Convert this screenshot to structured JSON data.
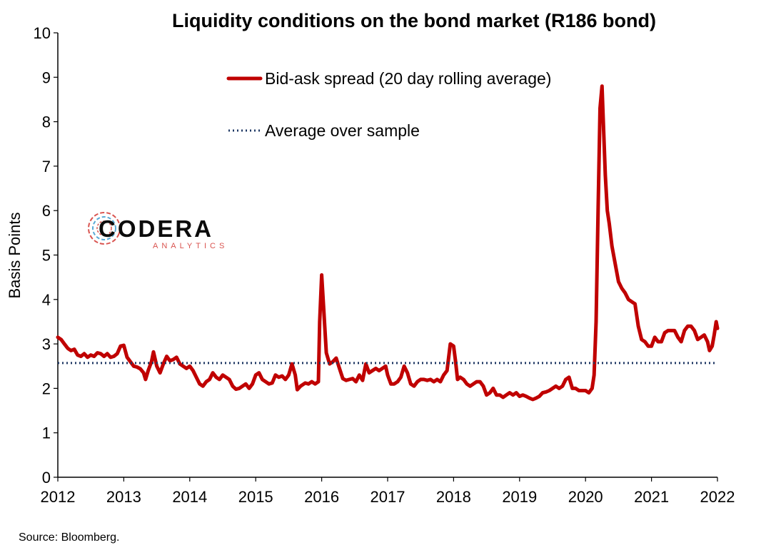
{
  "chart_data": {
    "type": "line",
    "title": "Liquidity conditions on the bond market (R186 bond)",
    "ylabel": "Basis Points",
    "xlabel": "",
    "ylim": [
      0,
      10
    ],
    "yticks": [
      "0",
      "1",
      "2",
      "3",
      "4",
      "5",
      "6",
      "7",
      "8",
      "9",
      "10"
    ],
    "xlim": [
      2012,
      2022
    ],
    "xticks": [
      "2012",
      "2013",
      "2014",
      "2015",
      "2016",
      "2017",
      "2018",
      "2019",
      "2020",
      "2021",
      "2022"
    ],
    "grid": false,
    "legend_position": "top-center",
    "series": [
      {
        "name": "Bid-ask spread (20 day rolling average)",
        "color": "#c00000",
        "style": "solid",
        "points": [
          [
            2012.0,
            3.15
          ],
          [
            2012.05,
            3.1
          ],
          [
            2012.1,
            3.0
          ],
          [
            2012.15,
            2.9
          ],
          [
            2012.2,
            2.85
          ],
          [
            2012.25,
            2.88
          ],
          [
            2012.3,
            2.75
          ],
          [
            2012.35,
            2.72
          ],
          [
            2012.4,
            2.78
          ],
          [
            2012.45,
            2.7
          ],
          [
            2012.5,
            2.75
          ],
          [
            2012.55,
            2.72
          ],
          [
            2012.6,
            2.8
          ],
          [
            2012.65,
            2.78
          ],
          [
            2012.7,
            2.72
          ],
          [
            2012.75,
            2.78
          ],
          [
            2012.8,
            2.7
          ],
          [
            2012.85,
            2.72
          ],
          [
            2012.9,
            2.78
          ],
          [
            2012.95,
            2.95
          ],
          [
            2013.0,
            2.97
          ],
          [
            2013.05,
            2.7
          ],
          [
            2013.1,
            2.6
          ],
          [
            2013.15,
            2.5
          ],
          [
            2013.2,
            2.48
          ],
          [
            2013.25,
            2.44
          ],
          [
            2013.3,
            2.35
          ],
          [
            2013.33,
            2.2
          ],
          [
            2013.37,
            2.4
          ],
          [
            2013.42,
            2.6
          ],
          [
            2013.45,
            2.82
          ],
          [
            2013.5,
            2.5
          ],
          [
            2013.55,
            2.35
          ],
          [
            2013.6,
            2.55
          ],
          [
            2013.65,
            2.72
          ],
          [
            2013.7,
            2.62
          ],
          [
            2013.75,
            2.65
          ],
          [
            2013.8,
            2.7
          ],
          [
            2013.85,
            2.55
          ],
          [
            2013.9,
            2.5
          ],
          [
            2013.95,
            2.45
          ],
          [
            2014.0,
            2.5
          ],
          [
            2014.05,
            2.4
          ],
          [
            2014.1,
            2.25
          ],
          [
            2014.15,
            2.1
          ],
          [
            2014.2,
            2.05
          ],
          [
            2014.25,
            2.15
          ],
          [
            2014.3,
            2.2
          ],
          [
            2014.35,
            2.35
          ],
          [
            2014.4,
            2.25
          ],
          [
            2014.45,
            2.2
          ],
          [
            2014.5,
            2.3
          ],
          [
            2014.55,
            2.25
          ],
          [
            2014.6,
            2.2
          ],
          [
            2014.65,
            2.05
          ],
          [
            2014.7,
            1.98
          ],
          [
            2014.75,
            2.0
          ],
          [
            2014.8,
            2.05
          ],
          [
            2014.85,
            2.1
          ],
          [
            2014.9,
            2.0
          ],
          [
            2014.95,
            2.1
          ],
          [
            2015.0,
            2.3
          ],
          [
            2015.05,
            2.35
          ],
          [
            2015.1,
            2.2
          ],
          [
            2015.15,
            2.15
          ],
          [
            2015.2,
            2.1
          ],
          [
            2015.25,
            2.12
          ],
          [
            2015.3,
            2.3
          ],
          [
            2015.35,
            2.25
          ],
          [
            2015.4,
            2.28
          ],
          [
            2015.45,
            2.2
          ],
          [
            2015.5,
            2.3
          ],
          [
            2015.55,
            2.55
          ],
          [
            2015.6,
            2.3
          ],
          [
            2015.63,
            1.97
          ],
          [
            2015.68,
            2.05
          ],
          [
            2015.75,
            2.12
          ],
          [
            2015.8,
            2.1
          ],
          [
            2015.85,
            2.15
          ],
          [
            2015.9,
            2.1
          ],
          [
            2015.95,
            2.15
          ],
          [
            2015.97,
            3.5
          ],
          [
            2016.0,
            4.55
          ],
          [
            2016.03,
            3.8
          ],
          [
            2016.07,
            2.8
          ],
          [
            2016.12,
            2.55
          ],
          [
            2016.17,
            2.6
          ],
          [
            2016.22,
            2.68
          ],
          [
            2016.27,
            2.45
          ],
          [
            2016.32,
            2.22
          ],
          [
            2016.37,
            2.18
          ],
          [
            2016.42,
            2.2
          ],
          [
            2016.47,
            2.22
          ],
          [
            2016.52,
            2.15
          ],
          [
            2016.57,
            2.3
          ],
          [
            2016.62,
            2.18
          ],
          [
            2016.67,
            2.55
          ],
          [
            2016.72,
            2.35
          ],
          [
            2016.77,
            2.4
          ],
          [
            2016.82,
            2.45
          ],
          [
            2016.87,
            2.4
          ],
          [
            2016.92,
            2.45
          ],
          [
            2016.97,
            2.5
          ],
          [
            2017.0,
            2.3
          ],
          [
            2017.05,
            2.1
          ],
          [
            2017.1,
            2.1
          ],
          [
            2017.15,
            2.15
          ],
          [
            2017.2,
            2.25
          ],
          [
            2017.25,
            2.5
          ],
          [
            2017.3,
            2.35
          ],
          [
            2017.35,
            2.1
          ],
          [
            2017.4,
            2.05
          ],
          [
            2017.45,
            2.15
          ],
          [
            2017.5,
            2.2
          ],
          [
            2017.55,
            2.2
          ],
          [
            2017.6,
            2.18
          ],
          [
            2017.65,
            2.2
          ],
          [
            2017.7,
            2.15
          ],
          [
            2017.75,
            2.2
          ],
          [
            2017.8,
            2.15
          ],
          [
            2017.85,
            2.3
          ],
          [
            2017.9,
            2.4
          ],
          [
            2017.95,
            3.0
          ],
          [
            2018.0,
            2.95
          ],
          [
            2018.03,
            2.6
          ],
          [
            2018.06,
            2.2
          ],
          [
            2018.1,
            2.25
          ],
          [
            2018.15,
            2.2
          ],
          [
            2018.2,
            2.1
          ],
          [
            2018.25,
            2.05
          ],
          [
            2018.3,
            2.1
          ],
          [
            2018.35,
            2.15
          ],
          [
            2018.4,
            2.15
          ],
          [
            2018.45,
            2.05
          ],
          [
            2018.5,
            1.85
          ],
          [
            2018.55,
            1.9
          ],
          [
            2018.6,
            2.0
          ],
          [
            2018.65,
            1.85
          ],
          [
            2018.7,
            1.85
          ],
          [
            2018.75,
            1.8
          ],
          [
            2018.8,
            1.85
          ],
          [
            2018.85,
            1.9
          ],
          [
            2018.9,
            1.85
          ],
          [
            2018.95,
            1.9
          ],
          [
            2019.0,
            1.82
          ],
          [
            2019.05,
            1.85
          ],
          [
            2019.1,
            1.82
          ],
          [
            2019.15,
            1.78
          ],
          [
            2019.2,
            1.75
          ],
          [
            2019.25,
            1.78
          ],
          [
            2019.3,
            1.82
          ],
          [
            2019.35,
            1.9
          ],
          [
            2019.4,
            1.92
          ],
          [
            2019.45,
            1.95
          ],
          [
            2019.5,
            2.0
          ],
          [
            2019.55,
            2.05
          ],
          [
            2019.6,
            2.0
          ],
          [
            2019.65,
            2.05
          ],
          [
            2019.7,
            2.2
          ],
          [
            2019.75,
            2.25
          ],
          [
            2019.8,
            2.0
          ],
          [
            2019.85,
            2.0
          ],
          [
            2019.9,
            1.95
          ],
          [
            2019.95,
            1.95
          ],
          [
            2020.0,
            1.95
          ],
          [
            2020.05,
            1.9
          ],
          [
            2020.1,
            2.0
          ],
          [
            2020.13,
            2.3
          ],
          [
            2020.16,
            3.5
          ],
          [
            2020.19,
            6.0
          ],
          [
            2020.22,
            8.3
          ],
          [
            2020.25,
            8.8
          ],
          [
            2020.27,
            8.0
          ],
          [
            2020.3,
            6.8
          ],
          [
            2020.33,
            6.0
          ],
          [
            2020.36,
            5.7
          ],
          [
            2020.4,
            5.2
          ],
          [
            2020.45,
            4.8
          ],
          [
            2020.5,
            4.4
          ],
          [
            2020.55,
            4.25
          ],
          [
            2020.6,
            4.15
          ],
          [
            2020.65,
            4.0
          ],
          [
            2020.7,
            3.95
          ],
          [
            2020.75,
            3.9
          ],
          [
            2020.8,
            3.4
          ],
          [
            2020.85,
            3.1
          ],
          [
            2020.9,
            3.05
          ],
          [
            2020.95,
            2.95
          ],
          [
            2021.0,
            2.95
          ],
          [
            2021.05,
            3.15
          ],
          [
            2021.1,
            3.05
          ],
          [
            2021.15,
            3.05
          ],
          [
            2021.2,
            3.25
          ],
          [
            2021.25,
            3.3
          ],
          [
            2021.3,
            3.3
          ],
          [
            2021.35,
            3.3
          ],
          [
            2021.4,
            3.15
          ],
          [
            2021.45,
            3.05
          ],
          [
            2021.5,
            3.3
          ],
          [
            2021.55,
            3.4
          ],
          [
            2021.6,
            3.4
          ],
          [
            2021.65,
            3.3
          ],
          [
            2021.7,
            3.1
          ],
          [
            2021.75,
            3.15
          ],
          [
            2021.8,
            3.2
          ],
          [
            2021.85,
            3.05
          ],
          [
            2021.88,
            2.85
          ],
          [
            2021.92,
            2.95
          ],
          [
            2021.95,
            3.2
          ],
          [
            2021.98,
            3.5
          ],
          [
            2022.0,
            3.35
          ]
        ]
      },
      {
        "name": "Average over sample",
        "color": "#1f3864",
        "style": "dotted",
        "points": [
          [
            2012.0,
            2.57
          ],
          [
            2022.0,
            2.57
          ]
        ]
      }
    ],
    "source": "Source: Bloomberg."
  },
  "logo": {
    "name": "CODERA",
    "subtitle": "ANALYTICS",
    "colors": [
      "#d9534f",
      "#5aa9d6"
    ]
  }
}
